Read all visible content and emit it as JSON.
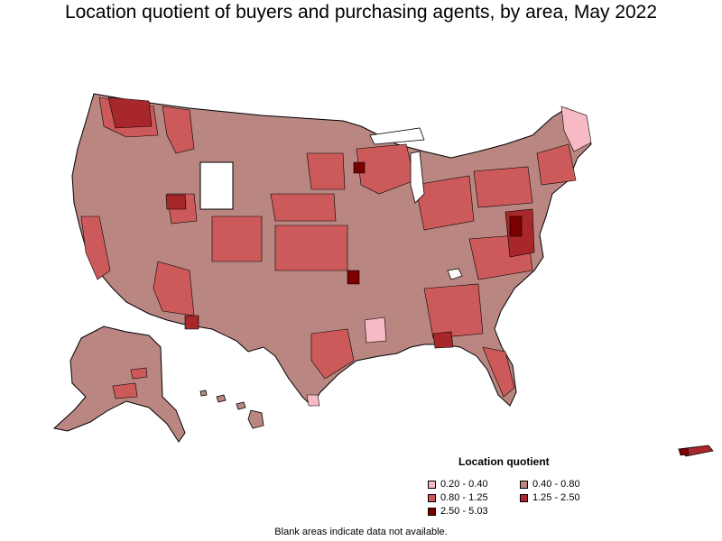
{
  "title": "Location quotient of buyers and purchasing agents, by area, May 2022",
  "legend": {
    "title": "Location quotient",
    "items": [
      {
        "label": "0.20 - 0.40",
        "color": "#f7b9c3"
      },
      {
        "label": "0.40 - 0.80",
        "color": "#b98682"
      },
      {
        "label": "0.80 - 1.25",
        "color": "#cd5a5a"
      },
      {
        "label": "1.25 - 2.50",
        "color": "#a8272b"
      },
      {
        "label": "2.50 - 5.03",
        "color": "#7a0000"
      }
    ]
  },
  "footnote": "Blank areas indicate data not available.",
  "colors": {
    "base": "#b98682",
    "mid": "#cd5a5a",
    "high": "#a8272b",
    "top": "#7a0000",
    "low": "#f7b9c3",
    "border": "#000000",
    "no_data": "#ffffff"
  }
}
